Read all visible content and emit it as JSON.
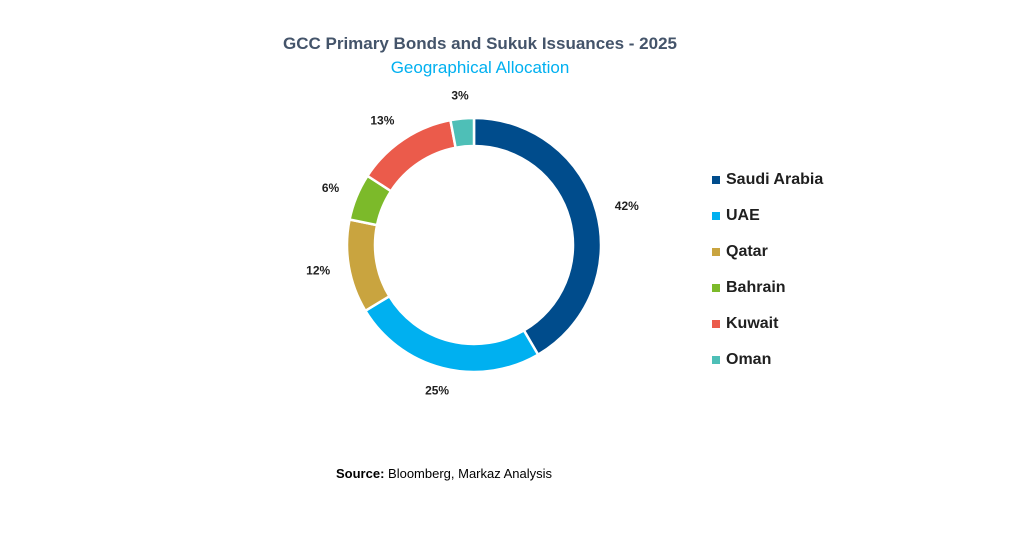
{
  "chart_data": {
    "type": "pie",
    "variant": "donut",
    "title": "GCC Primary Bonds and Sukuk Issuances - 2025",
    "subtitle": "Geographical Allocation",
    "unit": "%",
    "legend_position": "right",
    "slices": [
      {
        "label": "Saudi Arabia",
        "value": 42,
        "value_label": "42%",
        "color": "#004c8c"
      },
      {
        "label": "UAE",
        "value": 25,
        "value_label": "25%",
        "color": "#00b0f0"
      },
      {
        "label": "Qatar",
        "value": 12,
        "value_label": "12%",
        "color": "#c9a43f"
      },
      {
        "label": "Bahrain",
        "value": 6,
        "value_label": "6%",
        "color": "#7cba2a"
      },
      {
        "label": "Kuwait",
        "value": 13,
        "value_label": "13%",
        "color": "#eb5b4b"
      },
      {
        "label": "Oman",
        "value": 3,
        "value_label": "3%",
        "color": "#4ebfb7"
      }
    ]
  },
  "source": {
    "label": "Source:",
    "text": "Bloomberg, Markaz Analysis"
  }
}
